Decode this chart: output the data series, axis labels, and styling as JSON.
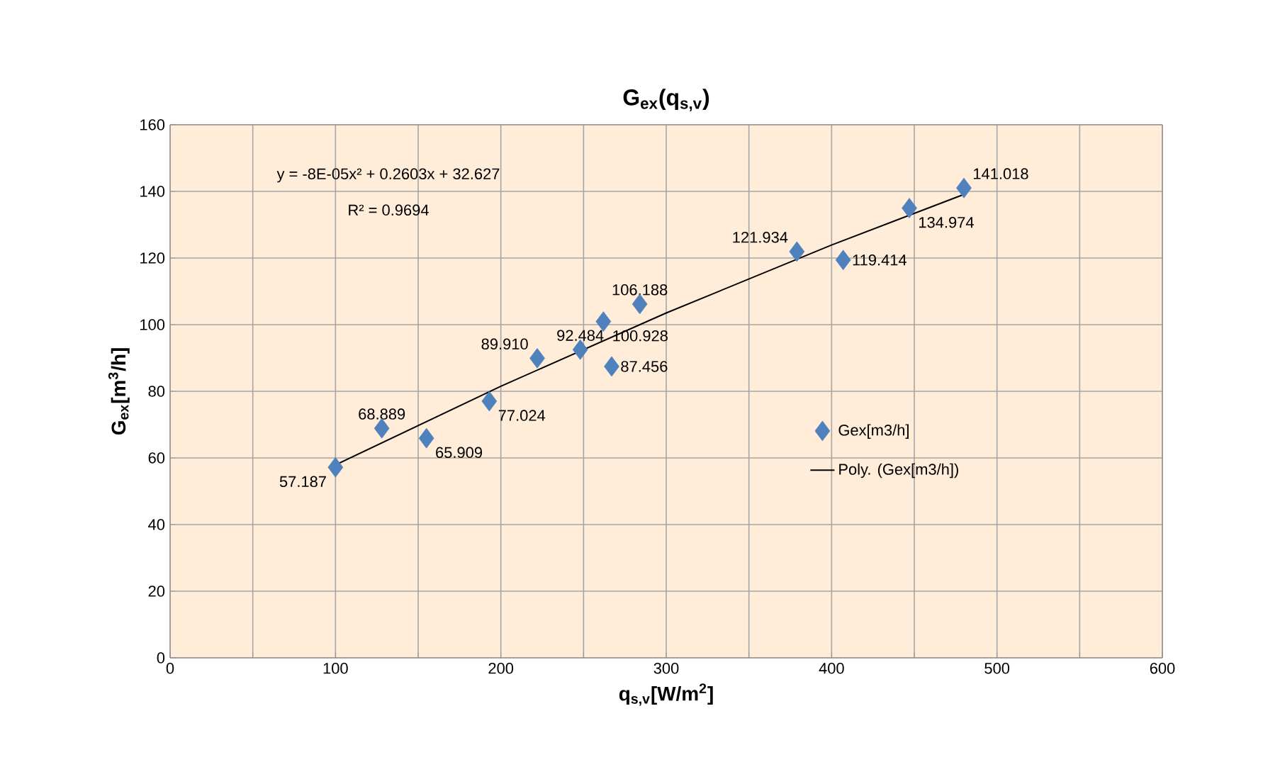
{
  "chart_data": {
    "type": "scatter",
    "title": "G$_{ex}$(q$_{s,v}$)",
    "xlabel": "q$_{s,v}$[W/m$^{2}$]",
    "ylabel": "G$_{ex}$[m$^{3}$/h]",
    "xlim": [
      0,
      600
    ],
    "ylim": [
      0,
      160
    ],
    "xticks": [
      0,
      {
        "value": 50,
        "label": null
      },
      100,
      {
        "value": 150,
        "label": null
      },
      200,
      {
        "value": 250,
        "label": null
      },
      300,
      {
        "value": 350,
        "label": null
      },
      400,
      {
        "value": 450,
        "label": null
      },
      500,
      {
        "value": 550,
        "label": null
      },
      600
    ],
    "yticks": [
      0,
      20,
      40,
      60,
      80,
      100,
      120,
      140,
      160
    ],
    "grid": true,
    "legend": "right",
    "annotations": [
      "y = -8E-05x² + 0.2603x + 32.627",
      "R² = 0.9694"
    ],
    "series": [
      {
        "name": "Gex[m3/h]",
        "color": "#4f81bd",
        "marker": "diamond",
        "x": [
          100,
          128,
          155,
          193,
          222,
          248,
          262,
          267,
          284,
          379,
          407,
          447,
          480
        ],
        "values": [
          57.187,
          68.889,
          65.909,
          77.024,
          89.91,
          92.484,
          100.928,
          87.456,
          106.188,
          121.934,
          119.414,
          134.974,
          141.018
        ],
        "value_labels": [
          "57.187",
          "68.889",
          "65.909",
          "77.024",
          "89.910",
          "92.484",
          "100.928",
          "87.456",
          "106.188",
          "121.934",
          "119.414",
          "134.974",
          "141.018"
        ]
      },
      {
        "name": "Poly. (Gex[m3/h])",
        "type": "line",
        "color": "#000000",
        "marker": "none",
        "line_style": "solid",
        "x": [
          100,
          200,
          300,
          400,
          480
        ],
        "values": [
          57.9,
          81.5,
          103.5,
          123.9,
          139.1
        ]
      }
    ]
  }
}
